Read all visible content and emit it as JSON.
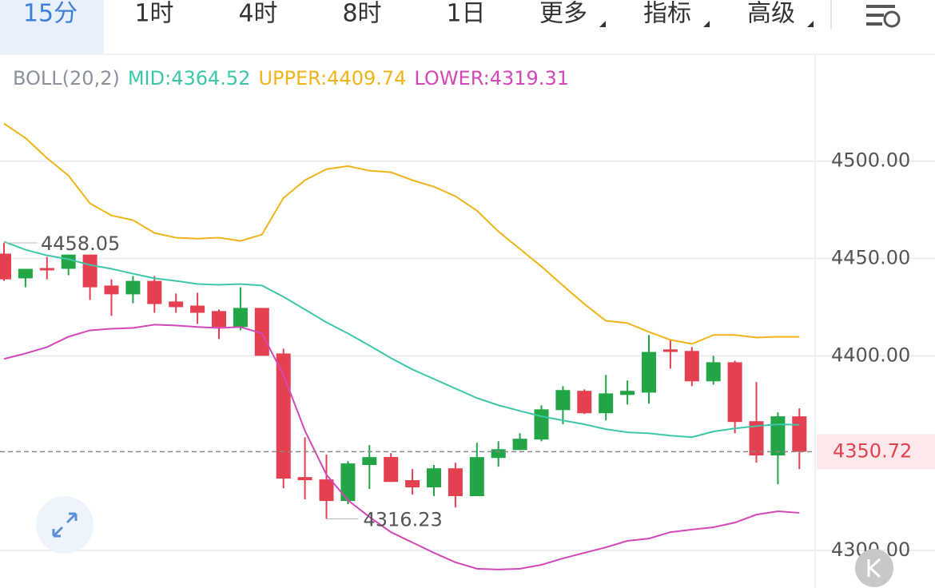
{
  "tabs": [
    "15分",
    "1时",
    "4时",
    "8时",
    "1日",
    "更多",
    "指标",
    "高级"
  ],
  "chart_data": {
    "type": "candlestick",
    "indicator": "BOLL(20,2)",
    "up_color": "#22a645",
    "down_color": "#e5404f",
    "open": [
      4452.5,
      4439.8,
      4445.1,
      4444.7,
      4452.0,
      4436.1,
      4431.6,
      4438.5,
      4427.9,
      4425.8,
      4423.0,
      4414.8,
      4424.6,
      4401.2,
      4337.7,
      4336.5,
      4325.4,
      4343.9,
      4348.0,
      4336.1,
      4332.4,
      4342.2,
      4327.9,
      4347.5,
      4351.6,
      4357.0,
      4372.1,
      4382.0,
      4370.5,
      4379.9,
      4381.1,
      4403.3,
      4402.5,
      4386.9,
      4396.7,
      4366.4,
      4348.8,
      4368.9
    ],
    "high": [
      4458.05,
      4444.7,
      4450.8,
      4452.0,
      4452.0,
      4439.3,
      4441.0,
      4441.0,
      4432.0,
      4432.4,
      4423.8,
      4435.2,
      4424.6,
      4403.7,
      4358.2,
      4349.2,
      4345.9,
      4354.1,
      4350.0,
      4341.8,
      4343.9,
      4345.1,
      4355.3,
      4356.1,
      4360.2,
      4374.6,
      4384.4,
      4382.8,
      4390.2,
      4387.3,
      4410.7,
      4408.2,
      4404.5,
      4400.0,
      4397.5,
      4386.5,
      4370.9,
      4372.95
    ],
    "low": [
      4438.5,
      4435.2,
      4439.3,
      4441.4,
      4428.7,
      4420.5,
      4427.0,
      4422.1,
      4422.1,
      4416.4,
      4408.6,
      4413.1,
      4400.0,
      4332.0,
      4326.2,
      4316.23,
      4323.8,
      4331.6,
      4335.2,
      4328.7,
      4327.9,
      4322.1,
      4327.9,
      4343.0,
      4351.6,
      4356.1,
      4364.8,
      4370.1,
      4366.8,
      4375.0,
      4375.4,
      4393.4,
      4384.4,
      4385.2,
      4360.2,
      4345.1,
      4334.0,
      4341.8
    ],
    "close": [
      4439.3,
      4444.7,
      4443.9,
      4452.0,
      4435.2,
      4431.6,
      4438.5,
      4426.6,
      4425.0,
      4422.1,
      4414.8,
      4424.6,
      4400.0,
      4336.9,
      4336.1,
      4325.4,
      4344.7,
      4347.95,
      4335.2,
      4332.4,
      4342.2,
      4327.9,
      4347.95,
      4352.0,
      4357.4,
      4372.5,
      4382.4,
      4370.5,
      4380.7,
      4382.0,
      4402.0,
      4402.0,
      4386.9,
      4396.7,
      4366.0,
      4348.8,
      4368.9,
      4350.72
    ],
    "series": [
      {
        "name": "MID",
        "legend_label": "MID:4364.52",
        "color": "#3cc8a8",
        "values": [
          4458.6,
          4454.5,
          4451.6,
          4449.6,
          4446.7,
          4444.7,
          4442.2,
          4439.8,
          4438.5,
          4436.9,
          4436.5,
          4436.9,
          4436.1,
          4430.3,
          4423.8,
          4417.2,
          4411.5,
          4405.3,
          4398.8,
          4393.0,
          4388.1,
          4383.2,
          4378.3,
          4374.6,
          4371.7,
          4368.9,
          4366.8,
          4364.8,
          4362.3,
          4360.7,
          4360.2,
          4359.0,
          4358.2,
          4361.1,
          4362.7,
          4363.9,
          4364.8,
          4364.52
        ]
      },
      {
        "name": "UPPER",
        "legend_label": "UPPER:4409.74",
        "color": "#f0b419",
        "values": [
          4519.3,
          4511.9,
          4501.6,
          4492.6,
          4478.3,
          4472.1,
          4469.7,
          4463.1,
          4460.7,
          4460.2,
          4460.7,
          4459.0,
          4462.3,
          4481.1,
          4490.2,
          4495.9,
          4497.5,
          4495.1,
          4494.3,
          4490.2,
          4486.9,
          4482.0,
          4474.6,
          4463.9,
          4454.9,
          4445.9,
          4436.1,
          4426.6,
          4418.0,
          4416.8,
          4412.3,
          4408.2,
          4406.1,
          4410.7,
          4410.7,
          4409.4,
          4409.8,
          4409.74
        ]
      },
      {
        "name": "LOWER",
        "legend_label": "LOWER:4319.31",
        "color": "#d447b8",
        "values": [
          4398.4,
          4401.2,
          4404.5,
          4409.8,
          4413.1,
          4413.9,
          4414.3,
          4416.0,
          4415.6,
          4414.8,
          4414.3,
          4414.8,
          4411.5,
          4390.2,
          4361.5,
          4338.9,
          4325.8,
          4317.2,
          4309.4,
          4304.1,
          4298.8,
          4293.9,
          4290.6,
          4290.2,
          4290.6,
          4292.6,
          4295.9,
          4298.8,
          4301.6,
          4304.9,
          4306.1,
          4309.4,
          4310.7,
          4311.9,
          4314.3,
          4318.4,
          4320.1,
          4319.31
        ]
      }
    ],
    "max_annotation": 4458.05,
    "min_annotation": 4316.23,
    "last_price": 4350.72,
    "ylim": [
      4280.7,
      4554.9
    ],
    "yticks": [
      {
        "value": 4300,
        "label": "4300.00"
      },
      {
        "value": 4400,
        "label": "4400.00"
      },
      {
        "value": 4450,
        "label": "4450.00"
      },
      {
        "value": 4500,
        "label": "4500.00"
      }
    ],
    "grid": true
  }
}
